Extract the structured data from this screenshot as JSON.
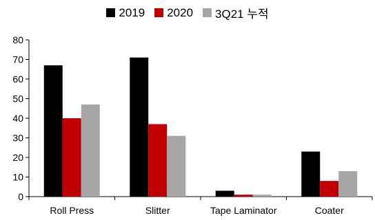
{
  "chart_data": {
    "type": "bar",
    "title": "",
    "xlabel": "",
    "ylabel": "",
    "ylim": [
      0,
      80
    ],
    "yticks": [
      0,
      10,
      20,
      30,
      40,
      50,
      60,
      70,
      80
    ],
    "grid": false,
    "legend_position": "top-center",
    "categories": [
      "Roll Press",
      "Slitter",
      "Tape Laminator",
      "Coater"
    ],
    "series": [
      {
        "name": "2019",
        "color": "#000000",
        "values": [
          67,
          71,
          3,
          23
        ]
      },
      {
        "name": "2020",
        "color": "#c00000",
        "values": [
          40,
          37,
          1,
          8
        ]
      },
      {
        "name": "3Q21 누적",
        "color": "#a6a6a6",
        "values": [
          47,
          31,
          1,
          13
        ]
      }
    ]
  }
}
